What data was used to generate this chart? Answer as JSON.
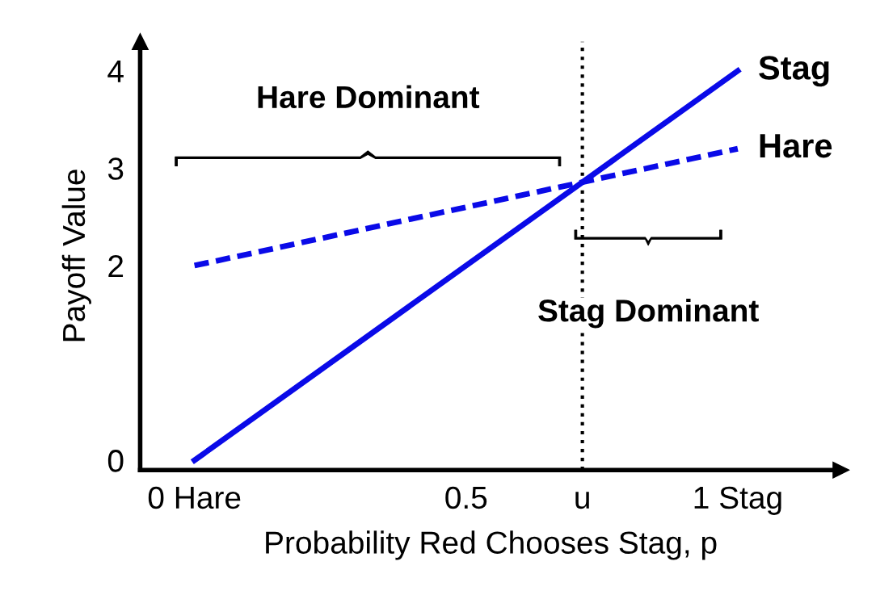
{
  "chart_data": {
    "type": "line",
    "x": [
      0,
      1
    ],
    "xlabel": "Probability Red Chooses Stag, p",
    "ylabel": "Payoff Value",
    "series": [
      {
        "name": "Stag",
        "color": "#0a0ae8",
        "values": [
          0,
          4
        ],
        "line_style": "solid"
      },
      {
        "name": "Hare",
        "color": "#0a0ae8",
        "values": [
          2,
          3.2
        ],
        "line_style": "dashed"
      }
    ],
    "xlim": [
      -0.1,
      1.19
    ],
    "ylim": [
      -0.1,
      4.3
    ],
    "xticks": [
      {
        "value": 0,
        "label": "0 Hare"
      },
      {
        "value": 0.5,
        "label": "0.5"
      },
      {
        "value": 0.714,
        "label": "u"
      },
      {
        "value": 1,
        "label": "1 Stag"
      }
    ],
    "yticks": [
      0,
      2,
      3,
      4
    ],
    "ref_lines": [
      {
        "axis": "x",
        "value": 0.714,
        "label": null,
        "color": "#000000",
        "line_style": "dotted"
      }
    ],
    "annotations": [
      "Hare Dominant",
      "Stag Dominant"
    ],
    "grid": false,
    "legend": false,
    "marker": "none"
  }
}
